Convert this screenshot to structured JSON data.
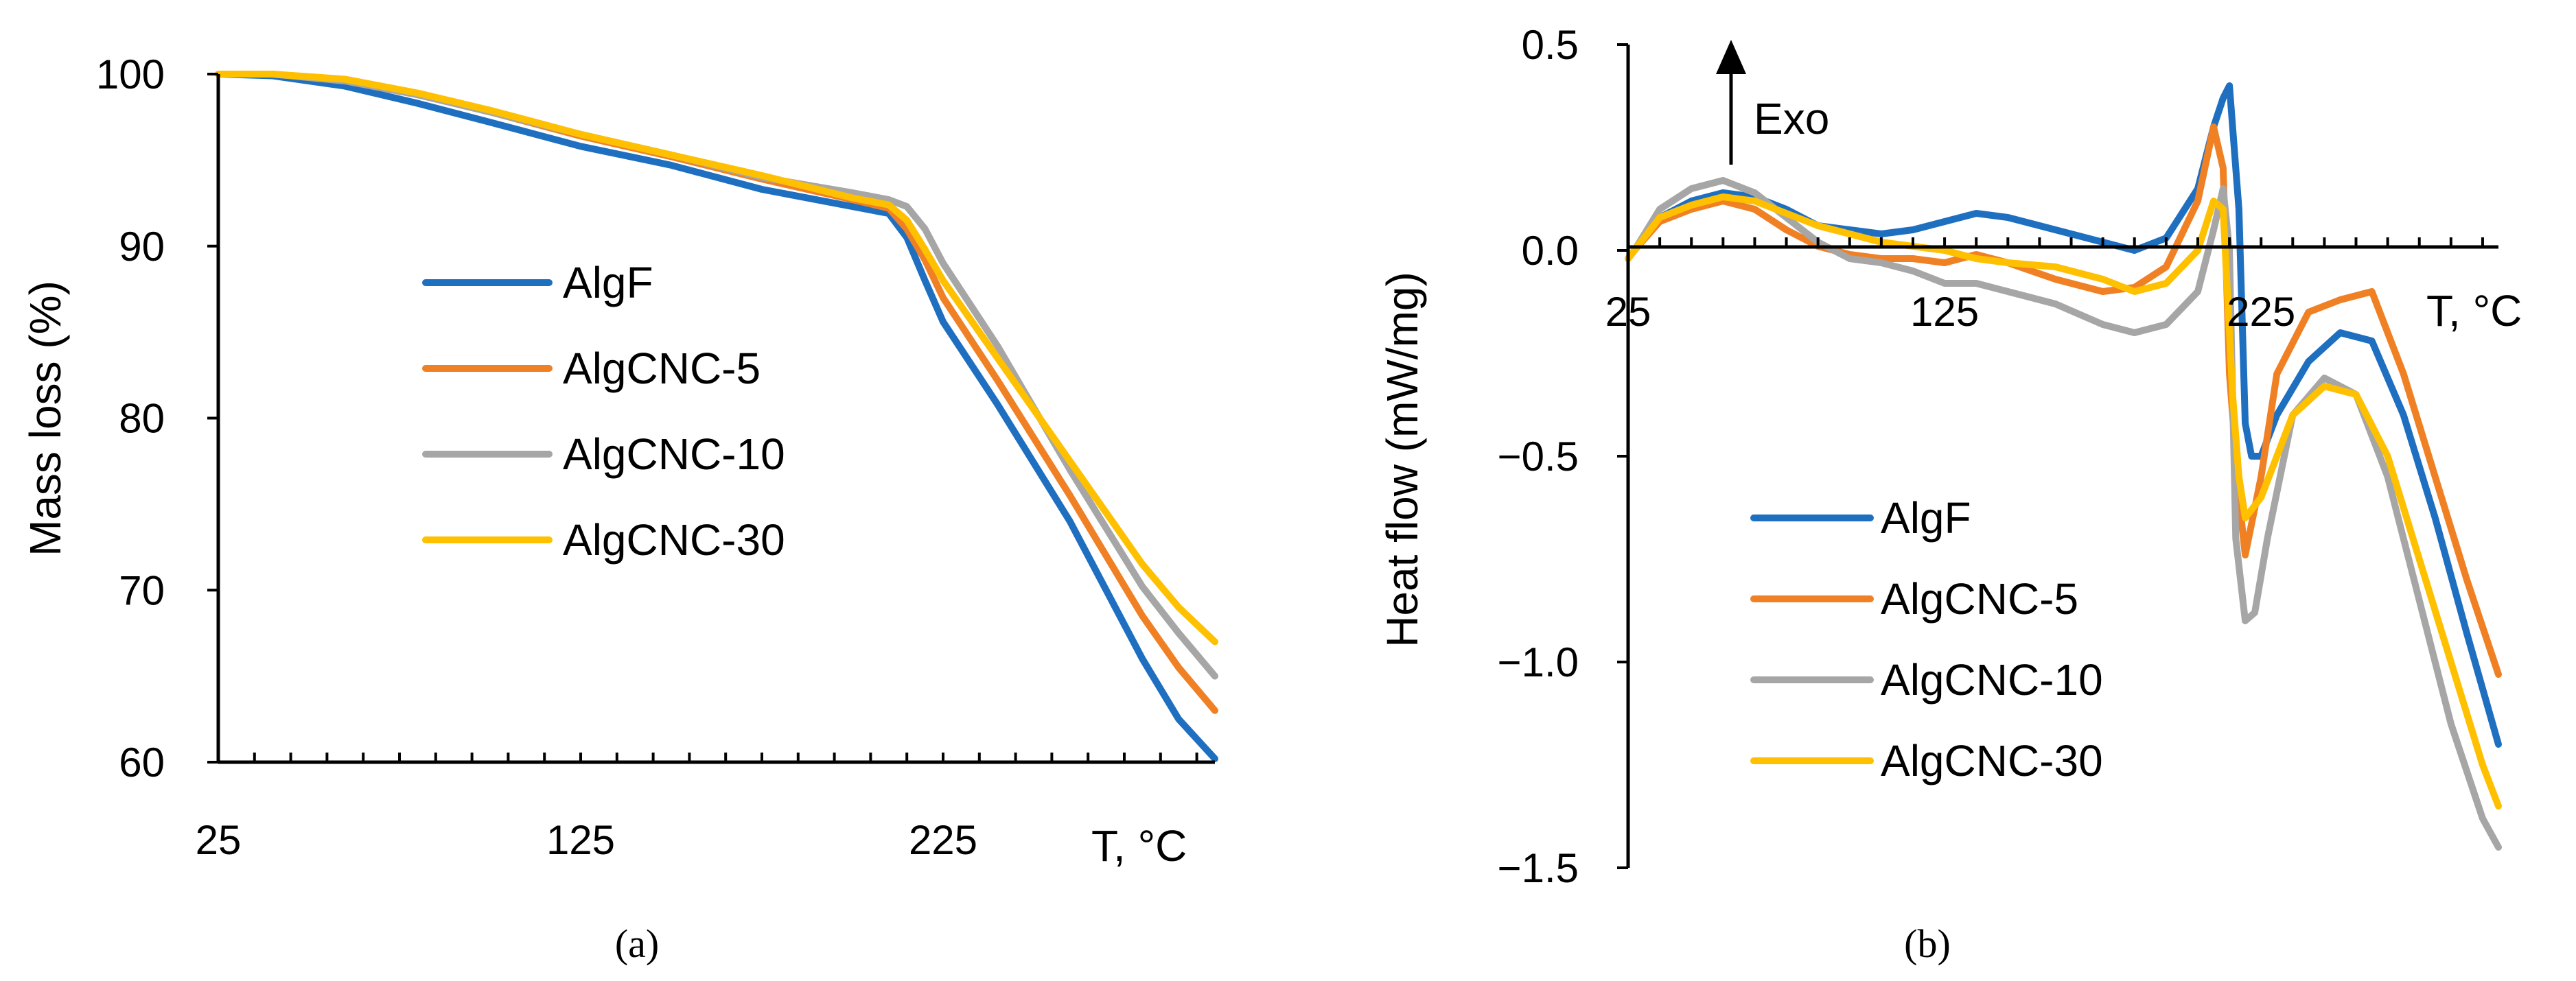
{
  "chart_data": [
    {
      "panel": "a",
      "caption": "(a)",
      "type": "line",
      "title": "",
      "xlabel": "T, °C",
      "ylabel": "Mass loss (%)",
      "xlim": [
        25,
        300
      ],
      "ylim": [
        60,
        100
      ],
      "xticks": [
        25,
        125,
        225
      ],
      "yticks": [
        60,
        70,
        80,
        90,
        100
      ],
      "grid": false,
      "legend_position": "center-left",
      "series": [
        {
          "name": "AlgF",
          "color": "#1F6FC1",
          "x": [
            25,
            40,
            60,
            80,
            100,
            125,
            150,
            175,
            200,
            210,
            215,
            220,
            225,
            240,
            260,
            280,
            290,
            300
          ],
          "y": [
            100,
            99.9,
            99.3,
            98.3,
            97.2,
            95.8,
            94.7,
            93.3,
            92.3,
            91.9,
            90.5,
            88,
            85.6,
            80.8,
            74,
            66,
            62.5,
            60.2
          ]
        },
        {
          "name": "AlgCNC-5",
          "color": "#F08024",
          "x": [
            25,
            40,
            60,
            80,
            100,
            125,
            150,
            175,
            200,
            210,
            215,
            220,
            225,
            240,
            260,
            280,
            290,
            300
          ],
          "y": [
            100,
            100,
            99.6,
            98.8,
            97.8,
            96.4,
            95.2,
            93.9,
            92.7,
            92.2,
            91,
            89.2,
            87,
            82.2,
            75.5,
            68.5,
            65.5,
            63
          ]
        },
        {
          "name": "AlgCNC-10",
          "color": "#A6A6A6",
          "x": [
            25,
            40,
            60,
            80,
            100,
            125,
            150,
            175,
            200,
            210,
            215,
            220,
            225,
            240,
            260,
            280,
            290,
            300
          ],
          "y": [
            100,
            100,
            99.6,
            98.8,
            97.8,
            96.5,
            95.3,
            94,
            93.1,
            92.7,
            92.3,
            91,
            89,
            84.2,
            77,
            70.2,
            67.5,
            65
          ]
        },
        {
          "name": "AlgCNC-30",
          "color": "#FFC000",
          "x": [
            25,
            40,
            60,
            80,
            100,
            125,
            150,
            175,
            200,
            210,
            215,
            220,
            225,
            240,
            260,
            280,
            290,
            300
          ],
          "y": [
            100,
            100,
            99.7,
            98.9,
            97.9,
            96.5,
            95.3,
            94.1,
            92.8,
            92.4,
            91.5,
            89.8,
            88,
            83.5,
            77.5,
            71.5,
            69,
            67
          ]
        }
      ]
    },
    {
      "panel": "b",
      "caption": "(b)",
      "type": "line",
      "title": "",
      "xlabel": "T, °C",
      "ylabel": "Heat flow (mW/mg)",
      "annotation": "Exo",
      "xlim": [
        25,
        300
      ],
      "ylim": [
        -1.5,
        0.5
      ],
      "xticks": [
        25,
        125,
        225
      ],
      "yticks": [
        0.5,
        0.0,
        -0.5,
        -1.0,
        -1.5
      ],
      "ytick_labels": [
        "0.5",
        "0.0",
        "−0.5",
        "−1.0",
        "−1.5"
      ],
      "grid": false,
      "legend_position": "bottom-left",
      "series": [
        {
          "name": "AlgF",
          "color": "#1F6FC1",
          "x": [
            25,
            27,
            35,
            45,
            55,
            65,
            75,
            85,
            95,
            105,
            115,
            125,
            135,
            145,
            160,
            175,
            185,
            195,
            205,
            210,
            213,
            215,
            218,
            220,
            222,
            225,
            230,
            240,
            250,
            260,
            270,
            280,
            290,
            300
          ],
          "y": [
            -0.02,
            0.0,
            0.08,
            0.12,
            0.14,
            0.13,
            0.1,
            0.06,
            0.05,
            0.04,
            0.05,
            0.07,
            0.09,
            0.08,
            0.05,
            0.02,
            0.0,
            0.03,
            0.15,
            0.3,
            0.37,
            0.4,
            0.1,
            -0.42,
            -0.5,
            -0.5,
            -0.4,
            -0.27,
            -0.2,
            -0.22,
            -0.4,
            -0.65,
            -0.93,
            -1.2
          ]
        },
        {
          "name": "AlgCNC-5",
          "color": "#F08024",
          "x": [
            25,
            27,
            35,
            45,
            55,
            65,
            75,
            85,
            95,
            105,
            115,
            125,
            135,
            145,
            160,
            175,
            185,
            195,
            205,
            210,
            213,
            215,
            218,
            220,
            225,
            230,
            240,
            250,
            260,
            270,
            280,
            290,
            300
          ],
          "y": [
            -0.02,
            0.0,
            0.07,
            0.1,
            0.12,
            0.1,
            0.05,
            0.01,
            -0.01,
            -0.02,
            -0.02,
            -0.03,
            -0.01,
            -0.03,
            -0.07,
            -0.1,
            -0.09,
            -0.04,
            0.12,
            0.3,
            0.2,
            -0.3,
            -0.6,
            -0.74,
            -0.55,
            -0.3,
            -0.15,
            -0.12,
            -0.1,
            -0.3,
            -0.55,
            -0.8,
            -1.03
          ]
        },
        {
          "name": "AlgCNC-10",
          "color": "#A6A6A6",
          "x": [
            25,
            27,
            35,
            45,
            55,
            65,
            75,
            85,
            95,
            105,
            115,
            125,
            135,
            145,
            160,
            175,
            185,
            195,
            205,
            210,
            213,
            215,
            217,
            220,
            223,
            227,
            235,
            245,
            255,
            265,
            275,
            285,
            295,
            300
          ],
          "y": [
            -0.02,
            0.0,
            0.1,
            0.15,
            0.17,
            0.14,
            0.08,
            0.02,
            -0.02,
            -0.03,
            -0.05,
            -0.08,
            -0.08,
            -0.1,
            -0.13,
            -0.18,
            -0.2,
            -0.18,
            -0.1,
            0.05,
            0.15,
            0.0,
            -0.7,
            -0.9,
            -0.88,
            -0.7,
            -0.4,
            -0.31,
            -0.35,
            -0.55,
            -0.85,
            -1.15,
            -1.38,
            -1.45
          ]
        },
        {
          "name": "AlgCNC-30",
          "color": "#FFC000",
          "x": [
            25,
            27,
            35,
            45,
            55,
            65,
            75,
            85,
            95,
            105,
            115,
            125,
            135,
            145,
            160,
            175,
            185,
            195,
            205,
            210,
            213,
            216,
            218,
            220,
            225,
            235,
            245,
            255,
            265,
            275,
            285,
            295,
            300
          ],
          "y": [
            -0.02,
            0.0,
            0.08,
            0.11,
            0.13,
            0.12,
            0.09,
            0.06,
            0.04,
            0.02,
            0.01,
            0.0,
            -0.02,
            -0.03,
            -0.04,
            -0.07,
            -0.1,
            -0.08,
            0.0,
            0.12,
            0.1,
            -0.35,
            -0.55,
            -0.65,
            -0.6,
            -0.4,
            -0.33,
            -0.35,
            -0.5,
            -0.75,
            -1.0,
            -1.25,
            -1.35
          ]
        }
      ]
    }
  ]
}
